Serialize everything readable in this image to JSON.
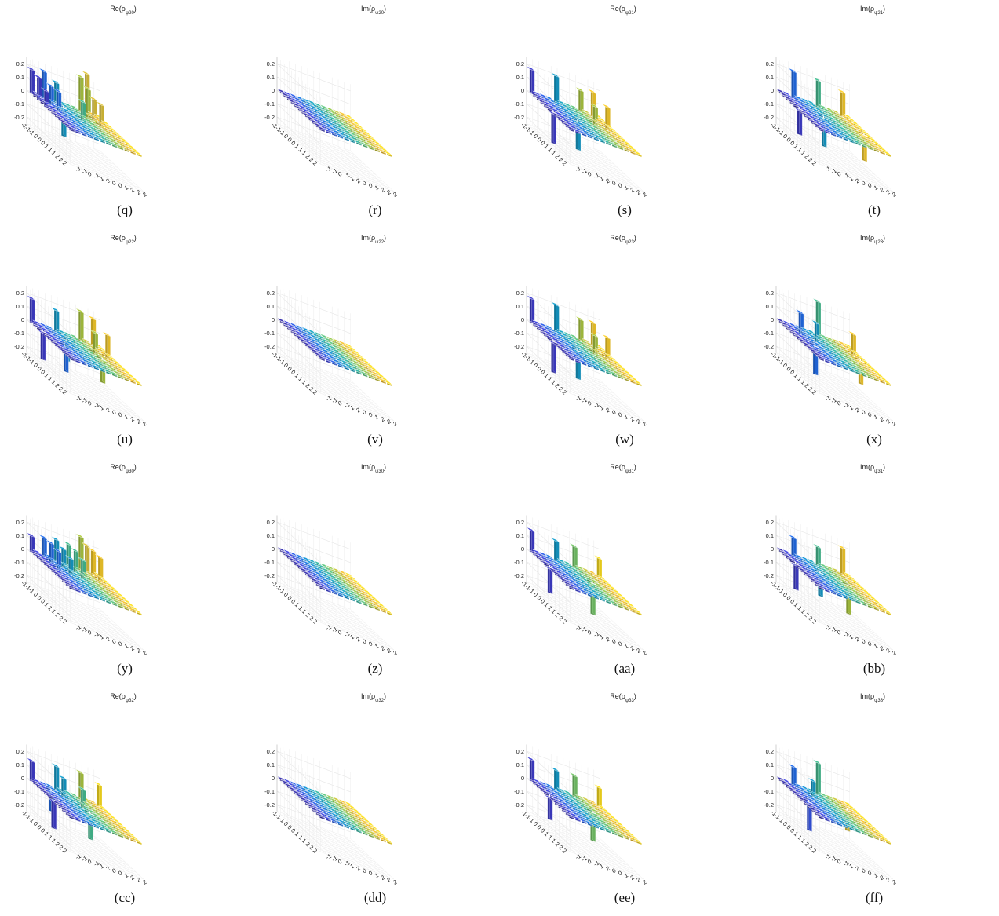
{
  "figure": {
    "row_labels": [
      "-1",
      "-1",
      "-1",
      "0",
      "0",
      "0",
      "1",
      "1",
      "1",
      "2",
      "2",
      "2"
    ],
    "col_labels": [
      "-1",
      "-1",
      "0",
      "-1",
      "1",
      "2",
      "0",
      "0",
      "1",
      "2",
      "2",
      "2"
    ],
    "z_ticks": [
      "0.2",
      "0.1",
      "0",
      "-0.1",
      "-0.2"
    ]
  },
  "chart_data": [
    {
      "type": "bar3d",
      "caption": "(q)",
      "title": "Re(ρψ20)",
      "title_main": "Re(ρ",
      "title_sub": "ψ20",
      "title_close": ")",
      "zlim": [
        -0.25,
        0.25
      ],
      "spikes": [
        {
          "row": 0,
          "col": 0,
          "value": 0.18
        },
        {
          "row": 0,
          "col": 2,
          "value": 0.2
        },
        {
          "row": 0,
          "col": 4,
          "value": 0.15
        },
        {
          "row": 0,
          "col": 8,
          "value": 0.26
        },
        {
          "row": 0,
          "col": 9,
          "value": 0.3
        },
        {
          "row": 2,
          "col": 0,
          "value": 0.17
        },
        {
          "row": 2,
          "col": 2,
          "value": 0.14
        },
        {
          "row": 2,
          "col": 4,
          "value": -0.2
        },
        {
          "row": 2,
          "col": 8,
          "value": 0.22
        },
        {
          "row": 2,
          "col": 9,
          "value": 0.16
        },
        {
          "row": 4,
          "col": 0,
          "value": 0.12
        },
        {
          "row": 4,
          "col": 2,
          "value": 0.15
        },
        {
          "row": 4,
          "col": 6,
          "value": 0.14
        },
        {
          "row": 4,
          "col": 9,
          "value": 0.17
        }
      ]
    },
    {
      "type": "bar3d",
      "caption": "(r)",
      "title": "Im(ρψ20)",
      "title_main": "Im(ρ",
      "title_sub": "ψ20",
      "title_close": ")",
      "zlim": [
        -0.25,
        0.25
      ],
      "spikes": []
    },
    {
      "type": "bar3d",
      "caption": "(s)",
      "title": "Re(ρψ21)",
      "title_main": "Re(ρ",
      "title_sub": "ψ21",
      "title_close": ")",
      "zlim": [
        -0.25,
        0.25
      ],
      "spikes": [
        {
          "row": 0,
          "col": 0,
          "value": 0.18
        },
        {
          "row": 0,
          "col": 4,
          "value": 0.2
        },
        {
          "row": 0,
          "col": 8,
          "value": 0.16
        },
        {
          "row": 0,
          "col": 10,
          "value": 0.18
        },
        {
          "row": 6,
          "col": 0,
          "value": -0.22
        },
        {
          "row": 6,
          "col": 4,
          "value": -0.2
        },
        {
          "row": 4,
          "col": 8,
          "value": 0.14
        },
        {
          "row": 4,
          "col": 10,
          "value": 0.17
        }
      ]
    },
    {
      "type": "bar3d",
      "caption": "(t)",
      "title": "Im(ρψ21)",
      "title_main": "Im(ρ",
      "title_sub": "ψ21",
      "title_close": ")",
      "zlim": [
        -0.25,
        0.25
      ],
      "spikes": [
        {
          "row": 0,
          "col": 2,
          "value": 0.2
        },
        {
          "row": 0,
          "col": 6,
          "value": 0.2
        },
        {
          "row": 0,
          "col": 10,
          "value": 0.18
        },
        {
          "row": 5,
          "col": 0,
          "value": -0.18
        },
        {
          "row": 5,
          "col": 4,
          "value": -0.2
        },
        {
          "row": 6,
          "col": 10,
          "value": -0.18
        }
      ]
    },
    {
      "type": "bar3d",
      "caption": "(u)",
      "title": "Re(ρψ22)",
      "title_main": "Re(ρ",
      "title_sub": "ψ22",
      "title_close": ")",
      "zlim": [
        -0.25,
        0.25
      ],
      "spikes": [
        {
          "row": 0,
          "col": 0,
          "value": 0.18
        },
        {
          "row": 0,
          "col": 4,
          "value": 0.16
        },
        {
          "row": 0,
          "col": 8,
          "value": 0.22
        },
        {
          "row": 0,
          "col": 10,
          "value": 0.2
        },
        {
          "row": 3,
          "col": 0,
          "value": -0.2
        },
        {
          "row": 3,
          "col": 4,
          "value": -0.14
        },
        {
          "row": 4,
          "col": 8,
          "value": 0.16
        },
        {
          "row": 4,
          "col": 10,
          "value": 0.18
        },
        {
          "row": 6,
          "col": 2,
          "value": -0.18
        },
        {
          "row": 6,
          "col": 8,
          "value": -0.16
        }
      ]
    },
    {
      "type": "bar3d",
      "caption": "(v)",
      "title": "Im(ρψ22)",
      "title_main": "Im(ρ",
      "title_sub": "ψ22",
      "title_close": ")",
      "zlim": [
        -0.25,
        0.25
      ],
      "spikes": []
    },
    {
      "type": "bar3d",
      "caption": "(w)",
      "title": "Re(ρψ23)",
      "title_main": "Re(ρ",
      "title_sub": "ψ23",
      "title_close": ")",
      "zlim": [
        -0.25,
        0.25
      ],
      "spikes": [
        {
          "row": 0,
          "col": 0,
          "value": 0.18
        },
        {
          "row": 0,
          "col": 4,
          "value": 0.2
        },
        {
          "row": 0,
          "col": 8,
          "value": 0.16
        },
        {
          "row": 0,
          "col": 10,
          "value": 0.17
        },
        {
          "row": 6,
          "col": 0,
          "value": -0.22
        },
        {
          "row": 6,
          "col": 4,
          "value": -0.2
        },
        {
          "row": 4,
          "col": 8,
          "value": 0.14
        },
        {
          "row": 4,
          "col": 10,
          "value": 0.16
        }
      ]
    },
    {
      "type": "bar3d",
      "caption": "(x)",
      "title": "Im(ρψ23)",
      "title_main": "Im(ρ",
      "title_sub": "ψ23",
      "title_close": ")",
      "zlim": [
        -0.25,
        0.25
      ],
      "spikes": [
        {
          "row": 0,
          "col": 6,
          "value": 0.26
        },
        {
          "row": 2,
          "col": 2,
          "value": 0.16
        },
        {
          "row": 3,
          "col": 4,
          "value": 0.14
        },
        {
          "row": 3,
          "col": 10,
          "value": 0.16
        },
        {
          "row": 6,
          "col": 2,
          "value": -0.2
        },
        {
          "row": 5,
          "col": 10,
          "value": -0.16
        }
      ]
    },
    {
      "type": "bar3d",
      "caption": "(y)",
      "title": "Re(ρψ30)",
      "title_main": "Re(ρ",
      "title_sub": "ψ30",
      "title_close": ")",
      "zlim": [
        -0.25,
        0.25
      ],
      "spikes": [
        {
          "row": 0,
          "col": 0,
          "value": 0.12
        },
        {
          "row": 0,
          "col": 2,
          "value": 0.14
        },
        {
          "row": 0,
          "col": 4,
          "value": 0.16
        },
        {
          "row": 0,
          "col": 6,
          "value": 0.16
        },
        {
          "row": 0,
          "col": 8,
          "value": 0.25
        },
        {
          "row": 0,
          "col": 9,
          "value": 0.2
        },
        {
          "row": 0,
          "col": 10,
          "value": 0.18
        },
        {
          "row": 2,
          "col": 2,
          "value": 0.15
        },
        {
          "row": 2,
          "col": 4,
          "value": 0.14
        },
        {
          "row": 2,
          "col": 6,
          "value": 0.16
        },
        {
          "row": 2,
          "col": 10,
          "value": 0.18
        },
        {
          "row": 4,
          "col": 2,
          "value": 0.14
        },
        {
          "row": 4,
          "col": 4,
          "value": 0.12
        },
        {
          "row": 4,
          "col": 6,
          "value": 0.14
        }
      ]
    },
    {
      "type": "bar3d",
      "caption": "(z)",
      "title": "Im(ρψ30)",
      "title_main": "Im(ρ",
      "title_sub": "ψ30",
      "title_close": ")",
      "zlim": [
        -0.25,
        0.25
      ],
      "spikes": []
    },
    {
      "type": "bar3d",
      "caption": "(aa)",
      "title": "Re(ρψ31)",
      "title_main": "Re(ρ",
      "title_sub": "ψ31",
      "title_close": ")",
      "zlim": [
        -0.25,
        0.25
      ],
      "spikes": [
        {
          "row": 0,
          "col": 0,
          "value": 0.16
        },
        {
          "row": 0,
          "col": 4,
          "value": 0.15
        },
        {
          "row": 0,
          "col": 7,
          "value": 0.16
        },
        {
          "row": 0,
          "col": 11,
          "value": 0.14
        },
        {
          "row": 5,
          "col": 0,
          "value": -0.18
        },
        {
          "row": 5,
          "col": 7,
          "value": -0.22
        }
      ]
    },
    {
      "type": "bar3d",
      "caption": "(bb)",
      "title": "Im(ρψ31)",
      "title_main": "Im(ρ",
      "title_sub": "ψ31",
      "title_close": ")",
      "zlim": [
        -0.25,
        0.25
      ],
      "spikes": [
        {
          "row": 0,
          "col": 2,
          "value": 0.14
        },
        {
          "row": 0,
          "col": 6,
          "value": 0.14
        },
        {
          "row": 0,
          "col": 10,
          "value": 0.2
        },
        {
          "row": 4,
          "col": 0,
          "value": -0.18
        },
        {
          "row": 4,
          "col": 4,
          "value": -0.16
        },
        {
          "row": 5,
          "col": 8,
          "value": -0.2
        }
      ]
    },
    {
      "type": "bar3d",
      "caption": "(cc)",
      "title": "Re(ρψ32)",
      "title_main": "Re(ρ",
      "title_sub": "ψ32",
      "title_close": ")",
      "zlim": [
        -0.25,
        0.25
      ],
      "spikes": [
        {
          "row": 0,
          "col": 0,
          "value": 0.15
        },
        {
          "row": 0,
          "col": 4,
          "value": 0.18
        },
        {
          "row": 0,
          "col": 8,
          "value": 0.2
        },
        {
          "row": 0,
          "col": 11,
          "value": 0.16
        },
        {
          "row": 2,
          "col": 2,
          "value": -0.14
        },
        {
          "row": 2,
          "col": 4,
          "value": 0.14
        },
        {
          "row": 4,
          "col": 6,
          "value": 0.14
        },
        {
          "row": 6,
          "col": 0,
          "value": -0.2
        },
        {
          "row": 6,
          "col": 6,
          "value": -0.18
        }
      ]
    },
    {
      "type": "bar3d",
      "caption": "(dd)",
      "title": "Im(ρψ32)",
      "title_main": "Im(ρ",
      "title_sub": "ψ32",
      "title_close": ")",
      "zlim": [
        -0.25,
        0.25
      ],
      "spikes": []
    },
    {
      "type": "bar3d",
      "caption": "(ee)",
      "title": "Re(ρψ33)",
      "title_main": "Re(ρ",
      "title_sub": "ψ33",
      "title_close": ")",
      "zlim": [
        -0.25,
        0.25
      ],
      "spikes": [
        {
          "row": 0,
          "col": 0,
          "value": 0.16
        },
        {
          "row": 0,
          "col": 4,
          "value": 0.15
        },
        {
          "row": 0,
          "col": 7,
          "value": 0.16
        },
        {
          "row": 0,
          "col": 11,
          "value": 0.14
        },
        {
          "row": 5,
          "col": 0,
          "value": -0.16
        },
        {
          "row": 5,
          "col": 7,
          "value": -0.2
        }
      ]
    },
    {
      "type": "bar3d",
      "caption": "(ff)",
      "title": "Im(ρψ33)",
      "title_main": "Im(ρ",
      "title_sub": "ψ33",
      "title_close": ")",
      "zlim": [
        -0.25,
        0.25
      ],
      "spikes": [
        {
          "row": 0,
          "col": 6,
          "value": 0.24
        },
        {
          "row": 0,
          "col": 2,
          "value": 0.14
        },
        {
          "row": 2,
          "col": 4,
          "value": 0.12
        },
        {
          "row": 3,
          "col": 9,
          "value": -0.14
        },
        {
          "row": 6,
          "col": 1,
          "value": -0.2
        }
      ]
    }
  ]
}
